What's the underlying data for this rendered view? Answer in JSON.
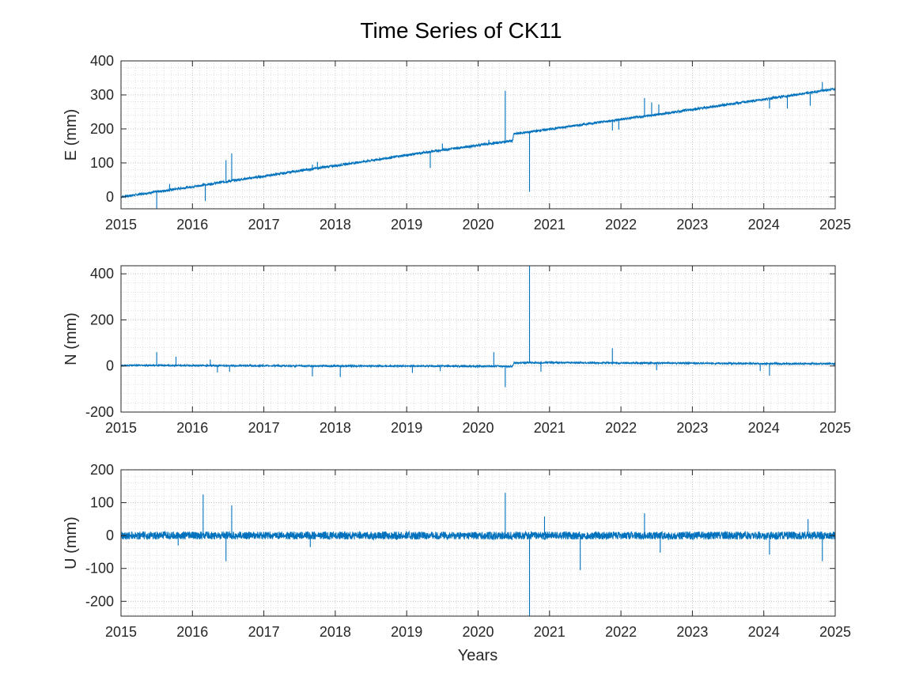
{
  "figure": {
    "title": "Time Series of CK11",
    "xlabel": "Years",
    "accent_color": "#0072BD",
    "grid": "major and minor dotted"
  },
  "chart_data": [
    {
      "type": "line",
      "ylabel": "E (mm)",
      "xlim": [
        2015,
        2025
      ],
      "ylim": [
        -35,
        400
      ],
      "xticks": [
        2015,
        2016,
        2017,
        2018,
        2019,
        2020,
        2021,
        2022,
        2023,
        2024,
        2025
      ],
      "yticks": [
        0,
        100,
        200,
        300,
        400
      ],
      "series": [
        {
          "color": "#0072BD",
          "x": [
            2015.0,
            2015.5,
            2016.0,
            2016.5,
            2017.0,
            2017.5,
            2018.0,
            2018.5,
            2019.0,
            2019.5,
            2020.0,
            2020.48,
            2020.5,
            2021.0,
            2021.5,
            2022.0,
            2022.5,
            2023.0,
            2023.5,
            2024.0,
            2024.5,
            2025.0
          ],
          "y": [
            0,
            15,
            30,
            46,
            61,
            77,
            92,
            107,
            123,
            138,
            152,
            165,
            185,
            199,
            214,
            228,
            242,
            257,
            272,
            287,
            302,
            318
          ],
          "spikes": [
            {
              "x": 2015.5,
              "y": -35
            },
            {
              "x": 2015.68,
              "y": 38
            },
            {
              "x": 2016.15,
              "y": 38
            },
            {
              "x": 2016.18,
              "y": -12
            },
            {
              "x": 2016.25,
              "y": 40
            },
            {
              "x": 2016.47,
              "y": 108
            },
            {
              "x": 2016.55,
              "y": 128
            },
            {
              "x": 2017.68,
              "y": 95
            },
            {
              "x": 2017.75,
              "y": 103
            },
            {
              "x": 2019.33,
              "y": 85
            },
            {
              "x": 2019.5,
              "y": 157
            },
            {
              "x": 2020.15,
              "y": 168
            },
            {
              "x": 2020.38,
              "y": 312
            },
            {
              "x": 2020.72,
              "y": 15
            },
            {
              "x": 2021.88,
              "y": 195
            },
            {
              "x": 2021.97,
              "y": 198
            },
            {
              "x": 2022.33,
              "y": 291
            },
            {
              "x": 2022.43,
              "y": 278
            },
            {
              "x": 2022.53,
              "y": 272
            },
            {
              "x": 2024.08,
              "y": 260
            },
            {
              "x": 2024.33,
              "y": 260
            },
            {
              "x": 2024.65,
              "y": 268
            },
            {
              "x": 2024.82,
              "y": 338
            }
          ]
        }
      ]
    },
    {
      "type": "line",
      "ylabel": "N (mm)",
      "xlim": [
        2015,
        2025
      ],
      "ylim": [
        -200,
        435
      ],
      "xticks": [
        2015,
        2016,
        2017,
        2018,
        2019,
        2020,
        2021,
        2022,
        2023,
        2024,
        2025
      ],
      "yticks": [
        -200,
        0,
        200,
        400
      ],
      "series": [
        {
          "color": "#0072BD",
          "x": [
            2015.0,
            2016.0,
            2017.0,
            2018.0,
            2019.0,
            2020.0,
            2020.48,
            2020.5,
            2021.0,
            2022.0,
            2023.0,
            2024.0,
            2025.0
          ],
          "y": [
            3,
            2,
            1,
            0,
            0,
            -1,
            -1,
            13,
            15,
            13,
            12,
            10,
            10
          ],
          "spikes": [
            {
              "x": 2015.5,
              "y": 60
            },
            {
              "x": 2015.77,
              "y": 40
            },
            {
              "x": 2016.25,
              "y": 28
            },
            {
              "x": 2016.35,
              "y": -28
            },
            {
              "x": 2016.52,
              "y": -25
            },
            {
              "x": 2017.68,
              "y": -45
            },
            {
              "x": 2018.07,
              "y": -48
            },
            {
              "x": 2019.08,
              "y": -30
            },
            {
              "x": 2019.47,
              "y": -22
            },
            {
              "x": 2020.22,
              "y": 60
            },
            {
              "x": 2020.38,
              "y": -92
            },
            {
              "x": 2020.72,
              "y": 435
            },
            {
              "x": 2020.88,
              "y": -25
            },
            {
              "x": 2021.88,
              "y": 77
            },
            {
              "x": 2022.5,
              "y": -18
            },
            {
              "x": 2023.95,
              "y": -22
            },
            {
              "x": 2024.08,
              "y": -42
            }
          ]
        }
      ]
    },
    {
      "type": "line",
      "ylabel": "U (mm)",
      "xlim": [
        2015,
        2025
      ],
      "ylim": [
        -245,
        200
      ],
      "xticks": [
        2015,
        2016,
        2017,
        2018,
        2019,
        2020,
        2021,
        2022,
        2023,
        2024,
        2025
      ],
      "yticks": [
        -200,
        -100,
        0,
        100,
        200
      ],
      "series": [
        {
          "color": "#0072BD",
          "x": [
            2015.0,
            2025.0
          ],
          "y": [
            0,
            0
          ],
          "noise_amplitude": 12,
          "spikes": [
            {
              "x": 2015.8,
              "y": -30
            },
            {
              "x": 2016.15,
              "y": 125
            },
            {
              "x": 2016.47,
              "y": -78
            },
            {
              "x": 2016.55,
              "y": 92
            },
            {
              "x": 2017.65,
              "y": -35
            },
            {
              "x": 2020.38,
              "y": 130
            },
            {
              "x": 2020.72,
              "y": -245
            },
            {
              "x": 2020.93,
              "y": 58
            },
            {
              "x": 2021.43,
              "y": -105
            },
            {
              "x": 2022.33,
              "y": 68
            },
            {
              "x": 2022.55,
              "y": -52
            },
            {
              "x": 2024.08,
              "y": -58
            },
            {
              "x": 2024.62,
              "y": 50
            },
            {
              "x": 2024.82,
              "y": -78
            }
          ]
        }
      ]
    }
  ]
}
